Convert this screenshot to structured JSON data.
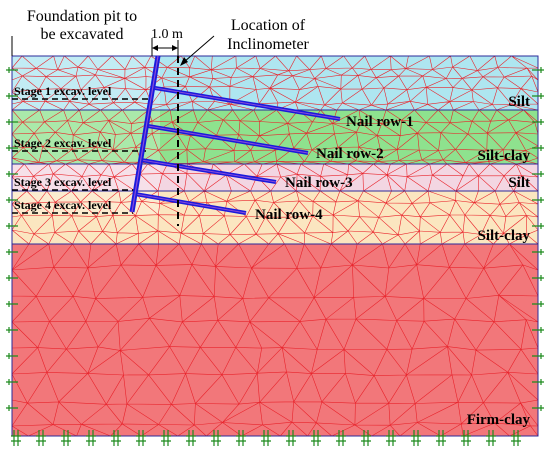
{
  "annotations": {
    "pit": [
      "Foundation pit to",
      "be excavated"
    ],
    "offset": "1.0 m",
    "inclinometer": [
      "Location of",
      "Inclinometer"
    ]
  },
  "layers": [
    {
      "name": "Silt",
      "color": "#aee6f0"
    },
    {
      "name": "Silt-clay",
      "color": "#8ee28e"
    },
    {
      "name": "Silt",
      "color": "#f3d6e2"
    },
    {
      "name": "Silt-clay",
      "color": "#fbe6c0"
    },
    {
      "name": "Firm-clay",
      "color": "#f2777a"
    }
  ],
  "stages": [
    "Stage 1 excav. level",
    "Stage 2 excav. level",
    "Stage 3 excav. level",
    "Stage 4 excav. level"
  ],
  "nails": [
    "Nail row-1",
    "Nail row-2",
    "Nail row-3",
    "Nail row-4"
  ],
  "colors": {
    "mesh": "#e8232b",
    "nail": "#1a1adc",
    "boundary": "#2b2b9a",
    "support": "#1d8a1d"
  }
}
